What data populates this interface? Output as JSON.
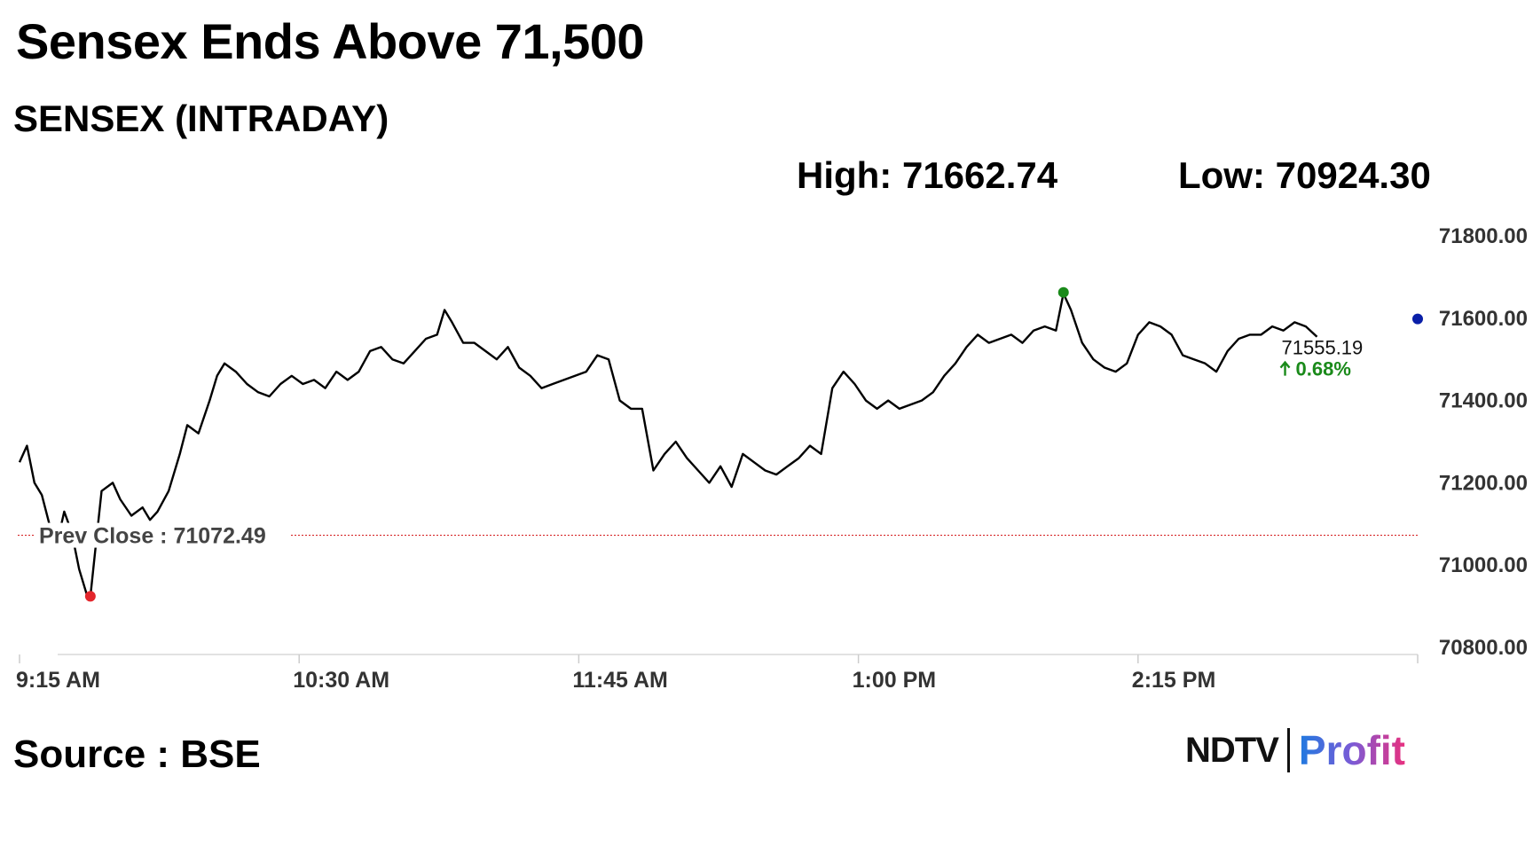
{
  "headline": "Sensex Ends Above 71,500",
  "subtitle": "SENSEX (INTRADAY)",
  "high_label": "High: 71662.74",
  "low_label": "Low: 70924.30",
  "source": "Source : BSE",
  "logo": {
    "brand": "NDTV",
    "product": "Profit"
  },
  "colors": {
    "line": "#000000",
    "prev_close_line": "#d62728",
    "high_marker": "#1a8a1a",
    "low_marker": "#e3262c",
    "last_marker": "#0a1fa8",
    "change_up": "#1a8a1a"
  },
  "chart_data": {
    "type": "line",
    "title": "SENSEX (INTRADAY)",
    "xlabel": "",
    "ylabel": "",
    "x_ticks": [
      "9:15 AM",
      "10:30 AM",
      "11:45 AM",
      "1:00 PM",
      "2:15 PM"
    ],
    "y_ticks": [
      71800.0,
      71600.0,
      71400.0,
      71200.0,
      71000.0,
      70800.0
    ],
    "y_tick_labels": [
      "71800.00",
      "71600.00",
      "71400.00",
      "71200.00",
      "71000.00",
      "70800.00"
    ],
    "ylim": [
      70800,
      71800
    ],
    "x_range": [
      "9:15 AM",
      "3:30 PM"
    ],
    "grid": false,
    "prev_close": 71072.49,
    "prev_close_label": "Prev Close : 71072.49",
    "high": 71662.74,
    "low": 70924.3,
    "last": 71555.19,
    "last_label": "71555.19",
    "change_label": "0.68%",
    "series": [
      {
        "name": "SENSEX",
        "points": [
          [
            "9:15 AM",
            71250
          ],
          [
            "9:17 AM",
            71290
          ],
          [
            "9:19 AM",
            71200
          ],
          [
            "9:21 AM",
            71170
          ],
          [
            "9:23 AM",
            71100
          ],
          [
            "9:25 AM",
            71050
          ],
          [
            "9:27 AM",
            71130
          ],
          [
            "9:29 AM",
            71080
          ],
          [
            "9:31 AM",
            70990
          ],
          [
            "9:33 AM",
            70930
          ],
          [
            "9:34 AM",
            70924
          ],
          [
            "9:35 AM",
            71010
          ],
          [
            "9:37 AM",
            71180
          ],
          [
            "9:40 AM",
            71200
          ],
          [
            "9:42 AM",
            71160
          ],
          [
            "9:45 AM",
            71120
          ],
          [
            "9:48 AM",
            71140
          ],
          [
            "9:50 AM",
            71110
          ],
          [
            "9:52 AM",
            71130
          ],
          [
            "9:55 AM",
            71180
          ],
          [
            "9:58 AM",
            71270
          ],
          [
            "10:00 AM",
            71340
          ],
          [
            "10:03 AM",
            71320
          ],
          [
            "10:06 AM",
            71400
          ],
          [
            "10:08 AM",
            71460
          ],
          [
            "10:10 AM",
            71490
          ],
          [
            "10:13 AM",
            71470
          ],
          [
            "10:16 AM",
            71440
          ],
          [
            "10:19 AM",
            71420
          ],
          [
            "10:22 AM",
            71410
          ],
          [
            "10:25 AM",
            71440
          ],
          [
            "10:28 AM",
            71460
          ],
          [
            "10:31 AM",
            71440
          ],
          [
            "10:34 AM",
            71450
          ],
          [
            "10:37 AM",
            71430
          ],
          [
            "10:40 AM",
            71470
          ],
          [
            "10:43 AM",
            71450
          ],
          [
            "10:46 AM",
            71470
          ],
          [
            "10:49 AM",
            71520
          ],
          [
            "10:52 AM",
            71530
          ],
          [
            "10:55 AM",
            71500
          ],
          [
            "10:58 AM",
            71490
          ],
          [
            "11:01 AM",
            71520
          ],
          [
            "11:04 AM",
            71550
          ],
          [
            "11:07 AM",
            71560
          ],
          [
            "11:09 AM",
            71620
          ],
          [
            "11:11 AM",
            71590
          ],
          [
            "11:14 AM",
            71540
          ],
          [
            "11:17 AM",
            71540
          ],
          [
            "11:20 AM",
            71520
          ],
          [
            "11:23 AM",
            71500
          ],
          [
            "11:26 AM",
            71530
          ],
          [
            "11:29 AM",
            71480
          ],
          [
            "11:32 AM",
            71460
          ],
          [
            "11:35 AM",
            71430
          ],
          [
            "11:38 AM",
            71440
          ],
          [
            "11:41 AM",
            71450
          ],
          [
            "11:44 AM",
            71460
          ],
          [
            "11:47 AM",
            71470
          ],
          [
            "11:50 AM",
            71510
          ],
          [
            "11:53 AM",
            71500
          ],
          [
            "11:56 AM",
            71400
          ],
          [
            "11:59 AM",
            71380
          ],
          [
            "12:02 PM",
            71380
          ],
          [
            "12:05 PM",
            71230
          ],
          [
            "12:08 PM",
            71270
          ],
          [
            "12:11 PM",
            71300
          ],
          [
            "12:14 PM",
            71260
          ],
          [
            "12:17 PM",
            71230
          ],
          [
            "12:20 PM",
            71200
          ],
          [
            "12:23 PM",
            71240
          ],
          [
            "12:26 PM",
            71190
          ],
          [
            "12:29 PM",
            71270
          ],
          [
            "12:32 PM",
            71250
          ],
          [
            "12:35 PM",
            71230
          ],
          [
            "12:38 PM",
            71220
          ],
          [
            "12:41 PM",
            71240
          ],
          [
            "12:44 PM",
            71260
          ],
          [
            "12:47 PM",
            71290
          ],
          [
            "12:50 PM",
            71270
          ],
          [
            "12:53 PM",
            71430
          ],
          [
            "12:56 PM",
            71470
          ],
          [
            "12:59 PM",
            71440
          ],
          [
            "1:02 PM",
            71400
          ],
          [
            "1:05 PM",
            71380
          ],
          [
            "1:08 PM",
            71400
          ],
          [
            "1:11 PM",
            71380
          ],
          [
            "1:14 PM",
            71390
          ],
          [
            "1:17 PM",
            71400
          ],
          [
            "1:20 PM",
            71420
          ],
          [
            "1:23 PM",
            71460
          ],
          [
            "1:26 PM",
            71490
          ],
          [
            "1:29 PM",
            71530
          ],
          [
            "1:32 PM",
            71560
          ],
          [
            "1:35 PM",
            71540
          ],
          [
            "1:38 PM",
            71550
          ],
          [
            "1:41 PM",
            71560
          ],
          [
            "1:44 PM",
            71540
          ],
          [
            "1:47 PM",
            71570
          ],
          [
            "1:50 PM",
            71580
          ],
          [
            "1:53 PM",
            71570
          ],
          [
            "1:55 PM",
            71660
          ],
          [
            "1:57 PM",
            71620
          ],
          [
            "2:00 PM",
            71540
          ],
          [
            "2:03 PM",
            71500
          ],
          [
            "2:06 PM",
            71480
          ],
          [
            "2:09 PM",
            71470
          ],
          [
            "2:12 PM",
            71490
          ],
          [
            "2:15 PM",
            71560
          ],
          [
            "2:18 PM",
            71590
          ],
          [
            "2:21 PM",
            71580
          ],
          [
            "2:24 PM",
            71560
          ],
          [
            "2:27 PM",
            71510
          ],
          [
            "2:30 PM",
            71500
          ],
          [
            "2:33 PM",
            71490
          ],
          [
            "2:36 PM",
            71470
          ],
          [
            "2:39 PM",
            71520
          ],
          [
            "2:42 PM",
            71550
          ],
          [
            "2:45 PM",
            71560
          ],
          [
            "2:48 PM",
            71560
          ],
          [
            "2:51 PM",
            71580
          ],
          [
            "2:54 PM",
            71570
          ],
          [
            "2:57 PM",
            71590
          ],
          [
            "3:00 PM",
            71580
          ],
          [
            "3:03 PM",
            71555
          ]
        ]
      }
    ]
  }
}
